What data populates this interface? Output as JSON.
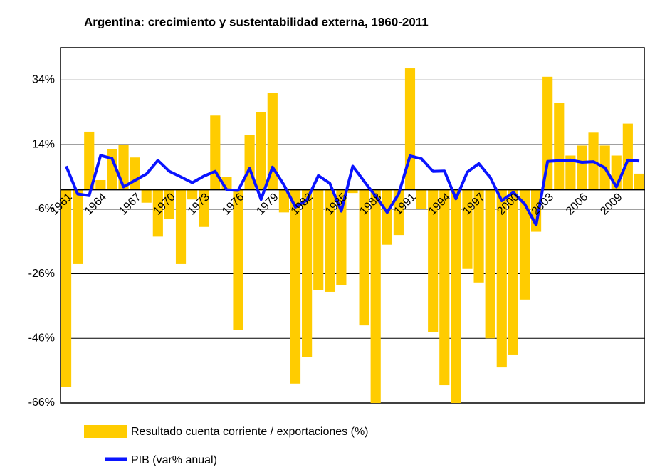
{
  "chart_data": {
    "type": "combo",
    "title": "Argentina: crecimiento y sustentabilidad externa, 1960-2011",
    "categories": [
      "1961",
      null,
      null,
      "1964",
      null,
      null,
      "1967",
      null,
      null,
      "1970",
      null,
      null,
      "1973",
      null,
      null,
      "1976",
      null,
      null,
      "1979",
      null,
      null,
      "1982",
      null,
      null,
      "1985",
      null,
      null,
      "1988",
      null,
      null,
      "1991",
      null,
      null,
      "1994",
      null,
      null,
      "1997",
      null,
      null,
      "2000",
      null,
      null,
      "2003",
      null,
      null,
      "2006",
      null,
      null,
      "2009",
      null,
      null
    ],
    "series": [
      {
        "name": "Resultado cuenta corriente / exportaciones (%)",
        "type": "bar",
        "color": "#ffcc00",
        "values": [
          -61,
          -23,
          18,
          3,
          12.6,
          14,
          10,
          -4,
          -14.5,
          -9,
          -23,
          -3,
          -11.5,
          23,
          4,
          -43.5,
          17,
          24,
          30,
          -7,
          -60,
          -51.7,
          -31,
          -31.6,
          -29.6,
          -1,
          -42,
          -66,
          -17,
          -14,
          37.6,
          -6,
          -44,
          -60.5,
          -66,
          -24.5,
          -28.7,
          -46,
          -55,
          -51,
          -34,
          -13,
          35,
          27,
          10.6,
          13.7,
          17.7,
          13.7,
          10.6,
          20.5,
          5
        ]
      },
      {
        "name": "PIB (var% anual)",
        "type": "line",
        "color": "#0a14ff",
        "values": [
          7.3,
          -1.3,
          -1.8,
          10.6,
          9.7,
          0.9,
          2.9,
          4.9,
          9.1,
          5.7,
          4,
          2.2,
          4.2,
          5.7,
          0,
          -0.2,
          6.6,
          -3,
          7,
          1.5,
          -5.4,
          -3.2,
          4.4,
          2,
          -6.6,
          7.3,
          2.6,
          -2,
          -7,
          -1.3,
          10.5,
          9.6,
          5.7,
          5.8,
          -2.8,
          5.5,
          8.1,
          3.8,
          -3.4,
          -0.8,
          -4.4,
          -10.9,
          8.8,
          9,
          9.2,
          8.5,
          8.7,
          6.8,
          0.9,
          9.2,
          8.9
        ]
      }
    ],
    "ylim": [
      -66,
      44
    ],
    "yticks": [
      {
        "value": -66,
        "label": "-66%"
      },
      {
        "value": -46,
        "label": "-46%"
      },
      {
        "value": -26,
        "label": "-26%"
      },
      {
        "value": -6,
        "label": "-6%"
      },
      {
        "value": 14,
        "label": "14%"
      },
      {
        "value": 34,
        "label": "34%"
      }
    ],
    "grid": true
  }
}
